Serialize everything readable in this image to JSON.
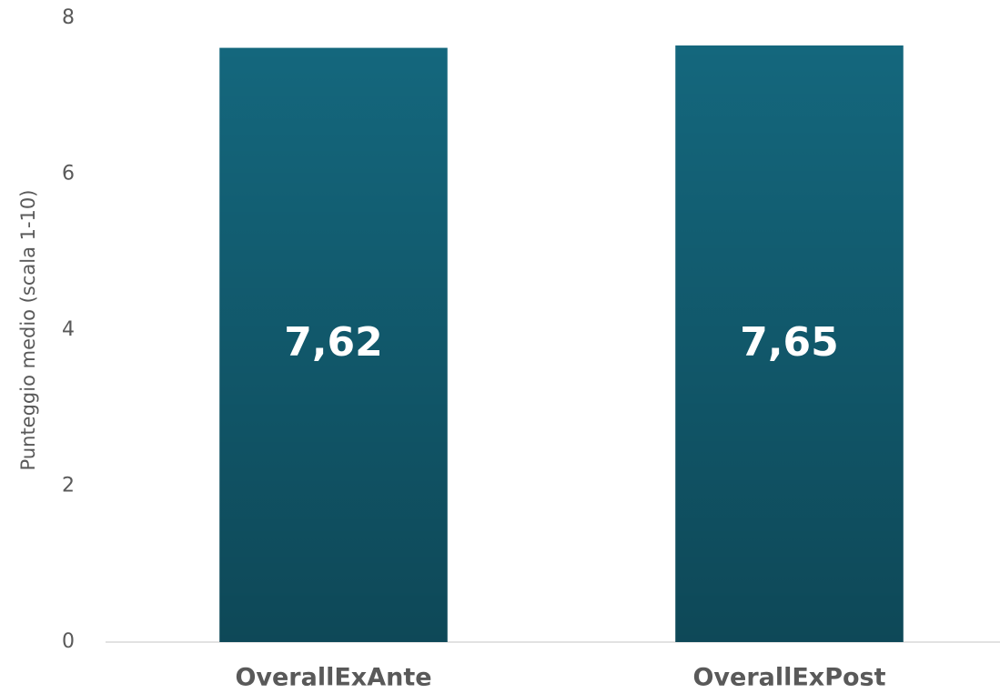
{
  "chart_data": {
    "type": "bar",
    "ylabel": "Punteggio medio (scala 1-10)",
    "categories": [
      "OverallExAnte",
      "OverallExPost"
    ],
    "values": [
      7.62,
      7.65
    ],
    "value_labels": [
      "7,62",
      "7,65"
    ],
    "color": "#14677d",
    "ylim": [
      0,
      8
    ],
    "yticks": [
      0,
      2,
      4,
      6,
      8
    ],
    "grid": false
  }
}
